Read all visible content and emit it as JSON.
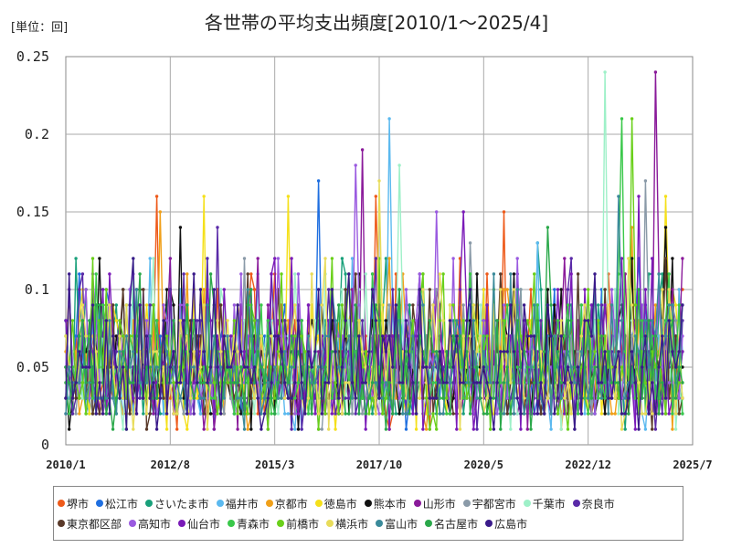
{
  "chart_data": {
    "type": "line",
    "title": "各世帯の平均支出頻度[2010/1～2025/4]",
    "unit_label": "[単位：回]",
    "xlabel": "",
    "ylabel": "",
    "x_start": "2010/1",
    "x_end": "2025/4",
    "x_tick_labels": [
      "2010/1",
      "2012/8",
      "2015/3",
      "2017/10",
      "2020/5",
      "2022/12",
      "2025/7"
    ],
    "y_tick_labels": [
      "0",
      "0.05",
      "0.1",
      "0.15",
      "0.2",
      "0.25"
    ],
    "ylim": [
      0,
      0.25
    ],
    "grid": true,
    "legend_position": "bottom",
    "series": [
      {
        "name": "堺市",
        "color": "#ee5a1a",
        "peaks": [
          {
            "month": 27,
            "value": 0.16
          },
          {
            "month": 92,
            "value": 0.16
          },
          {
            "month": 130,
            "value": 0.15
          }
        ]
      },
      {
        "name": "松江市",
        "color": "#1f6fe0",
        "peaks": [
          {
            "month": 75,
            "value": 0.17
          },
          {
            "month": 170,
            "value": 0.12
          }
        ]
      },
      {
        "name": "さいたま市",
        "color": "#19a07a",
        "peaks": [
          {
            "month": 3,
            "value": 0.12
          },
          {
            "month": 140,
            "value": 0.13
          }
        ]
      },
      {
        "name": "福井市",
        "color": "#5bb9ef",
        "peaks": [
          {
            "month": 96,
            "value": 0.21
          },
          {
            "month": 140,
            "value": 0.13
          }
        ]
      },
      {
        "name": "京都市",
        "color": "#f0a01a",
        "peaks": [
          {
            "month": 28,
            "value": 0.15
          },
          {
            "month": 168,
            "value": 0.14
          }
        ]
      },
      {
        "name": "徳島市",
        "color": "#f5e01a",
        "peaks": [
          {
            "month": 41,
            "value": 0.16
          },
          {
            "month": 66,
            "value": 0.16
          },
          {
            "month": 178,
            "value": 0.16
          }
        ]
      },
      {
        "name": "熊本市",
        "color": "#111111",
        "peaks": [
          {
            "month": 34,
            "value": 0.14
          },
          {
            "month": 178,
            "value": 0.14
          }
        ]
      },
      {
        "name": "山形市",
        "color": "#8a1a9a",
        "peaks": [
          {
            "month": 88,
            "value": 0.19
          },
          {
            "month": 175,
            "value": 0.24
          }
        ]
      },
      {
        "name": "宇都宮市",
        "color": "#8a9aa8",
        "peaks": [
          {
            "month": 120,
            "value": 0.13
          },
          {
            "month": 172,
            "value": 0.17
          }
        ]
      },
      {
        "name": "千葉市",
        "color": "#9ef0c8",
        "peaks": [
          {
            "month": 99,
            "value": 0.18
          },
          {
            "month": 160,
            "value": 0.24
          }
        ]
      },
      {
        "name": "奈良市",
        "color": "#5a2aa8",
        "peaks": [
          {
            "month": 45,
            "value": 0.14
          },
          {
            "month": 150,
            "value": 0.12
          }
        ]
      },
      {
        "name": "東京都区部",
        "color": "#5a3a2a",
        "peaks": [
          {
            "month": 1,
            "value": 0.1
          },
          {
            "month": 185,
            "value": 0.13
          }
        ]
      },
      {
        "name": "高知市",
        "color": "#9a5ae0",
        "peaks": [
          {
            "month": 86,
            "value": 0.18
          },
          {
            "month": 110,
            "value": 0.15
          }
        ]
      },
      {
        "name": "仙台市",
        "color": "#7a1ab8",
        "peaks": [
          {
            "month": 118,
            "value": 0.15
          },
          {
            "month": 170,
            "value": 0.16
          }
        ]
      },
      {
        "name": "青森市",
        "color": "#3ac84a",
        "peaks": [
          {
            "month": 165,
            "value": 0.21
          }
        ]
      },
      {
        "name": "前橋市",
        "color": "#6ad01a",
        "peaks": [
          {
            "month": 168,
            "value": 0.21
          }
        ]
      },
      {
        "name": "横浜市",
        "color": "#e8dc5a",
        "peaks": [
          {
            "month": 93,
            "value": 0.17
          }
        ]
      },
      {
        "name": "富山市",
        "color": "#3a8a9a",
        "peaks": [
          {
            "month": 164,
            "value": 0.16
          }
        ]
      },
      {
        "name": "名古屋市",
        "color": "#2aa84a",
        "peaks": [
          {
            "month": 143,
            "value": 0.14
          }
        ]
      },
      {
        "name": "広島市",
        "color": "#3a1a8a",
        "peaks": [
          {
            "month": 185,
            "value": 0.13
          }
        ]
      }
    ]
  }
}
